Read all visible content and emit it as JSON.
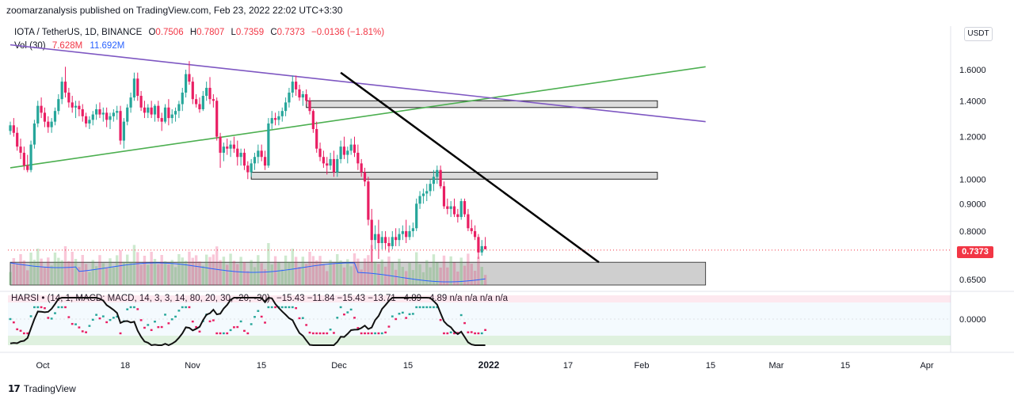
{
  "publisher": "zoomarzanalysis published on TradingView.com, Feb 23, 2022 22:02 UTC+3:30",
  "legend": {
    "symbol": "IOTA / TetherUS, 1D, BINANCE",
    "o_label": "O",
    "o": "0.7506",
    "h_label": "H",
    "h": "0.7807",
    "l_label": "L",
    "l": "0.7359",
    "c_label": "C",
    "c": "0.7373",
    "change": "−0.0136 (−1.81%)",
    "vol_label": "Vol (30)",
    "vol": "7.628M",
    "vol_ma": "11.692M",
    "harsi_label": "HARSI •",
    "harsi_params": "(14, 1, MACD: MACD, 14, 3, 3, 14, 80, 20, 30, -20, -30)",
    "harsi_values": "−15.43  −11.84  −15.43  −13.71  −4.89  −4.89  n/a  n/a  n/a  n/a"
  },
  "currency_button": "USDT",
  "last_price": "0.7373",
  "footer": {
    "logo": "17",
    "brand": "TradingView"
  },
  "colors": {
    "up": "#26a69a",
    "down": "#e91e63",
    "green_line": "#4caf50",
    "purple_line": "#7e57c2",
    "black_line": "#000000",
    "vol_ma": "#2962ff",
    "last_price": "#f23645"
  },
  "chart_data": {
    "type": "candlestick",
    "symbol": "IOTA/USDT",
    "interval": "1D",
    "price_axis": {
      "scale": "log",
      "ticks": [
        "1.6000",
        "1.4000",
        "1.2000",
        "1.0000",
        "0.9000",
        "0.8000",
        "0.6500"
      ],
      "range": [
        0.63,
        1.82
      ]
    },
    "time_axis": {
      "labels": [
        "Oct",
        "18",
        "Nov",
        "15",
        "Dec",
        "15",
        "2022",
        "17",
        "Feb",
        "15",
        "Mar",
        "15",
        "Apr"
      ]
    },
    "oscillator_ticks": [
      "0.0000"
    ],
    "start": "2021-09-25",
    "days": [
      [
        1.23,
        1.28,
        1.21,
        1.26
      ],
      [
        1.26,
        1.3,
        1.2,
        1.22
      ],
      [
        1.22,
        1.25,
        1.13,
        1.15
      ],
      [
        1.15,
        1.19,
        1.09,
        1.12
      ],
      [
        1.12,
        1.15,
        1.04,
        1.06
      ],
      [
        1.06,
        1.11,
        1.03,
        1.04
      ],
      [
        1.04,
        1.18,
        1.03,
        1.16
      ],
      [
        1.16,
        1.29,
        1.14,
        1.27
      ],
      [
        1.27,
        1.4,
        1.25,
        1.37
      ],
      [
        1.37,
        1.42,
        1.3,
        1.33
      ],
      [
        1.33,
        1.36,
        1.25,
        1.28
      ],
      [
        1.28,
        1.31,
        1.22,
        1.25
      ],
      [
        1.25,
        1.3,
        1.22,
        1.28
      ],
      [
        1.28,
        1.36,
        1.26,
        1.34
      ],
      [
        1.34,
        1.44,
        1.32,
        1.41
      ],
      [
        1.41,
        1.55,
        1.38,
        1.52
      ],
      [
        1.52,
        1.62,
        1.42,
        1.45
      ],
      [
        1.45,
        1.48,
        1.36,
        1.39
      ],
      [
        1.39,
        1.43,
        1.33,
        1.36
      ],
      [
        1.36,
        1.4,
        1.3,
        1.37
      ],
      [
        1.37,
        1.4,
        1.31,
        1.35
      ],
      [
        1.35,
        1.38,
        1.28,
        1.31
      ],
      [
        1.31,
        1.33,
        1.25,
        1.27
      ],
      [
        1.27,
        1.31,
        1.24,
        1.29
      ],
      [
        1.29,
        1.34,
        1.26,
        1.32
      ],
      [
        1.32,
        1.38,
        1.29,
        1.35
      ],
      [
        1.35,
        1.39,
        1.3,
        1.32
      ],
      [
        1.32,
        1.36,
        1.28,
        1.33
      ],
      [
        1.33,
        1.36,
        1.25,
        1.29
      ],
      [
        1.29,
        1.33,
        1.24,
        1.31
      ],
      [
        1.31,
        1.35,
        1.28,
        1.33
      ],
      [
        1.33,
        1.37,
        1.29,
        1.34
      ],
      [
        1.34,
        1.37,
        1.16,
        1.18
      ],
      [
        1.18,
        1.3,
        1.14,
        1.28
      ],
      [
        1.28,
        1.38,
        1.26,
        1.36
      ],
      [
        1.36,
        1.45,
        1.33,
        1.42
      ],
      [
        1.42,
        1.58,
        1.4,
        1.54
      ],
      [
        1.54,
        1.58,
        1.4,
        1.43
      ],
      [
        1.43,
        1.46,
        1.34,
        1.36
      ],
      [
        1.36,
        1.4,
        1.3,
        1.33
      ],
      [
        1.33,
        1.38,
        1.3,
        1.36
      ],
      [
        1.36,
        1.4,
        1.3,
        1.32
      ],
      [
        1.32,
        1.38,
        1.28,
        1.37
      ],
      [
        1.37,
        1.4,
        1.28,
        1.3
      ],
      [
        1.3,
        1.33,
        1.23,
        1.28
      ],
      [
        1.28,
        1.38,
        1.27,
        1.36
      ],
      [
        1.36,
        1.41,
        1.26,
        1.3
      ],
      [
        1.3,
        1.35,
        1.27,
        1.32
      ],
      [
        1.32,
        1.36,
        1.28,
        1.34
      ],
      [
        1.34,
        1.4,
        1.3,
        1.38
      ],
      [
        1.38,
        1.48,
        1.34,
        1.45
      ],
      [
        1.45,
        1.6,
        1.42,
        1.57
      ],
      [
        1.57,
        1.66,
        1.5,
        1.52
      ],
      [
        1.52,
        1.55,
        1.38,
        1.41
      ],
      [
        1.41,
        1.44,
        1.36,
        1.38
      ],
      [
        1.38,
        1.42,
        1.33,
        1.35
      ],
      [
        1.35,
        1.46,
        1.34,
        1.43
      ],
      [
        1.43,
        1.52,
        1.4,
        1.48
      ],
      [
        1.48,
        1.55,
        1.38,
        1.41
      ],
      [
        1.41,
        1.44,
        1.36,
        1.4
      ],
      [
        1.4,
        1.42,
        1.18,
        1.2
      ],
      [
        1.2,
        1.22,
        1.05,
        1.12
      ],
      [
        1.12,
        1.17,
        1.08,
        1.15
      ],
      [
        1.15,
        1.19,
        1.11,
        1.14
      ],
      [
        1.14,
        1.18,
        1.1,
        1.16
      ],
      [
        1.16,
        1.2,
        1.12,
        1.14
      ],
      [
        1.14,
        1.18,
        1.06,
        1.1
      ],
      [
        1.1,
        1.14,
        1.06,
        1.12
      ],
      [
        1.12,
        1.14,
        1.04,
        1.06
      ],
      [
        1.06,
        1.08,
        1.0,
        1.03
      ],
      [
        1.03,
        1.09,
        1.01,
        1.07
      ],
      [
        1.07,
        1.12,
        1.04,
        1.1
      ],
      [
        1.1,
        1.16,
        1.07,
        1.13
      ],
      [
        1.13,
        1.16,
        1.08,
        1.1
      ],
      [
        1.1,
        1.13,
        1.04,
        1.06
      ],
      [
        1.06,
        1.3,
        1.05,
        1.27
      ],
      [
        1.27,
        1.34,
        1.24,
        1.3
      ],
      [
        1.3,
        1.33,
        1.26,
        1.29
      ],
      [
        1.29,
        1.34,
        1.26,
        1.31
      ],
      [
        1.31,
        1.36,
        1.28,
        1.34
      ],
      [
        1.34,
        1.42,
        1.31,
        1.39
      ],
      [
        1.39,
        1.48,
        1.36,
        1.45
      ],
      [
        1.45,
        1.56,
        1.42,
        1.52
      ],
      [
        1.52,
        1.56,
        1.43,
        1.47
      ],
      [
        1.47,
        1.5,
        1.4,
        1.42
      ],
      [
        1.42,
        1.46,
        1.37,
        1.44
      ],
      [
        1.44,
        1.47,
        1.38,
        1.4
      ],
      [
        1.4,
        1.42,
        1.32,
        1.34
      ],
      [
        1.34,
        1.35,
        1.22,
        1.24
      ],
      [
        1.24,
        1.28,
        1.12,
        1.14
      ],
      [
        1.14,
        1.17,
        1.08,
        1.1
      ],
      [
        1.1,
        1.13,
        1.05,
        1.07
      ],
      [
        1.07,
        1.1,
        1.02,
        1.06
      ],
      [
        1.06,
        1.12,
        1.04,
        1.09
      ],
      [
        1.09,
        1.13,
        1.01,
        1.03
      ],
      [
        1.03,
        1.11,
        1.01,
        1.09
      ],
      [
        1.09,
        1.18,
        1.07,
        1.15
      ],
      [
        1.15,
        1.2,
        1.09,
        1.11
      ],
      [
        1.11,
        1.15,
        1.07,
        1.13
      ],
      [
        1.13,
        1.19,
        1.11,
        1.16
      ],
      [
        1.16,
        1.2,
        1.1,
        1.12
      ],
      [
        1.12,
        1.16,
        1.04,
        1.07
      ],
      [
        1.07,
        1.09,
        1.01,
        1.03
      ],
      [
        1.03,
        1.05,
        0.97,
        0.99
      ],
      [
        0.99,
        1.01,
        0.82,
        0.84
      ],
      [
        0.84,
        0.88,
        0.7,
        0.77
      ],
      [
        0.77,
        0.82,
        0.74,
        0.79
      ],
      [
        0.79,
        0.84,
        0.71,
        0.76
      ],
      [
        0.76,
        0.8,
        0.74,
        0.78
      ],
      [
        0.78,
        0.8,
        0.74,
        0.76
      ],
      [
        0.76,
        0.78,
        0.73,
        0.75
      ],
      [
        0.75,
        0.8,
        0.74,
        0.78
      ],
      [
        0.78,
        0.81,
        0.75,
        0.77
      ],
      [
        0.77,
        0.81,
        0.75,
        0.79
      ],
      [
        0.79,
        0.82,
        0.77,
        0.8
      ],
      [
        0.8,
        0.84,
        0.76,
        0.78
      ],
      [
        0.78,
        0.82,
        0.77,
        0.8
      ],
      [
        0.8,
        0.83,
        0.78,
        0.81
      ],
      [
        0.81,
        0.92,
        0.8,
        0.9
      ],
      [
        0.9,
        0.95,
        0.88,
        0.93
      ],
      [
        0.93,
        0.96,
        0.9,
        0.94
      ],
      [
        0.94,
        0.98,
        0.91,
        0.95
      ],
      [
        0.95,
        1.0,
        0.93,
        0.98
      ],
      [
        0.98,
        1.04,
        0.95,
        1.01
      ],
      [
        1.01,
        1.06,
        0.98,
        1.04
      ],
      [
        1.04,
        1.06,
        0.96,
        0.97
      ],
      [
        0.97,
        0.99,
        0.88,
        0.89
      ],
      [
        0.89,
        0.92,
        0.86,
        0.88
      ],
      [
        0.88,
        0.91,
        0.85,
        0.89
      ],
      [
        0.89,
        0.92,
        0.85,
        0.86
      ],
      [
        0.86,
        0.88,
        0.83,
        0.85
      ],
      [
        0.85,
        0.92,
        0.84,
        0.91
      ],
      [
        0.91,
        0.92,
        0.85,
        0.86
      ],
      [
        0.86,
        0.88,
        0.8,
        0.81
      ],
      [
        0.81,
        0.84,
        0.79,
        0.8
      ],
      [
        0.8,
        0.82,
        0.77,
        0.78
      ],
      [
        0.78,
        0.79,
        0.71,
        0.73
      ],
      [
        0.73,
        0.77,
        0.72,
        0.75
      ],
      [
        0.75,
        0.78,
        0.74,
        0.74
      ]
    ],
    "lines": [
      {
        "name": "green_line",
        "from": [
          "2021-09-25",
          1.05
        ],
        "to": [
          "2022-04-15",
          1.62
        ]
      },
      {
        "name": "purple_line",
        "from": [
          "2021-09-25",
          1.78
        ],
        "to": [
          "2022-04-15",
          1.28
        ]
      },
      {
        "name": "black_line",
        "from": [
          "2021-12-30",
          1.58
        ],
        "to": [
          "2022-03-15",
          0.7
        ]
      }
    ],
    "zones": [
      {
        "from": "2021-12-20",
        "to": "2022-04-01",
        "low": 1.36,
        "high": 1.4
      },
      {
        "from": "2021-12-04",
        "to": "2022-04-01",
        "low": 1.0,
        "high": 1.03
      },
      {
        "from": "2021-09-25",
        "to": "2022-04-15",
        "low": 0.63,
        "high": 0.7
      }
    ]
  }
}
